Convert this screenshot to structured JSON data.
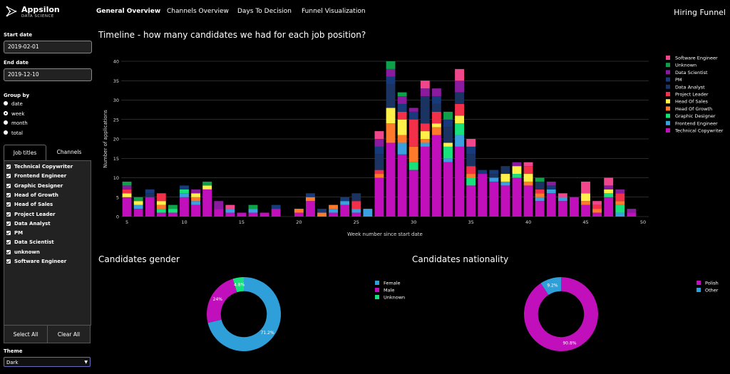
{
  "brand": {
    "name": "Appsilon",
    "sub": "DATA SCIENCE"
  },
  "app_title": "Hiring Funnel",
  "nav": [
    {
      "label": "General Overview",
      "active": true
    },
    {
      "label": "Channels Overview",
      "active": false
    },
    {
      "label": "Days To Decision",
      "active": false
    },
    {
      "label": "Funnel Visualization",
      "active": false
    }
  ],
  "sidebar": {
    "start_label": "Start date",
    "start_value": "2019-02-01",
    "end_label": "End date",
    "end_value": "2019-12-10",
    "group_label": "Group by",
    "group_options": [
      "date",
      "week",
      "month",
      "total"
    ],
    "group_selected": "week",
    "tabs": [
      "Job titles",
      "Channels"
    ],
    "job_titles": [
      "Technical Copywriter",
      "Frontend Engineer",
      "Graphic Designer",
      "Head of Growth",
      "Head of Sales",
      "Project Leader",
      "Data Analyst",
      "PM",
      "Data Scientist",
      "unknown",
      "Software Engineer"
    ],
    "select_all": "Select All",
    "clear_all": "Clear All",
    "theme_label": "Theme",
    "theme_value": "Dark"
  },
  "timeline_title": "Timeline - how many candidates we had for each job position?",
  "gender_title": "Candidates gender",
  "nationality_title": "Candidates nationality",
  "colors": {
    "Software Engineer": "#f0468c",
    "Unknown": "#0fa04a",
    "Data Scientist": "#8a1a9e",
    "PM": "#173a7a",
    "Data Analyst": "#1a3360",
    "Project Leader": "#f2304a",
    "Head Of Sales": "#fff04a",
    "Head Of Growth": "#ff7a2a",
    "Graphic Designer": "#18e07a",
    "Frontend Engineer": "#3aa0e0",
    "Technical Copywriter": "#c20fbc"
  },
  "chart_data": [
    {
      "type": "bar",
      "stacked": true,
      "xlabel": "Week number since start date",
      "ylabel": "Number of applications",
      "xlim": [
        4.5,
        50.5
      ],
      "ylim": [
        0,
        40
      ],
      "xticks": [
        5,
        10,
        15,
        20,
        25,
        30,
        35,
        40,
        45,
        50
      ],
      "yticks": [
        0,
        5,
        10,
        15,
        20,
        25,
        30,
        35,
        40
      ],
      "legend": [
        "Software Engineer",
        "Unknown",
        "Data Scientist",
        "PM",
        "Data Analyst",
        "Project Leader",
        "Head Of Sales",
        "Head Of Growth",
        "Graphic Designer",
        "Frontend Engineer",
        "Technical Copywriter"
      ],
      "stack_order": [
        "Technical Copywriter",
        "Frontend Engineer",
        "Graphic Designer",
        "Head Of Growth",
        "Head Of Sales",
        "Project Leader",
        "Data Analyst",
        "PM",
        "Data Scientist",
        "Unknown",
        "Software Engineer"
      ],
      "weeks": [
        {
          "x": 5,
          "s": {
            "Technical Copywriter": 5,
            "Head Of Sales": 1,
            "Project Leader": 1,
            "Data Scientist": 1,
            "Unknown": 1
          }
        },
        {
          "x": 6,
          "s": {
            "Technical Copywriter": 2,
            "Frontend Engineer": 1,
            "Head Of Sales": 1,
            "Unknown": 1
          }
        },
        {
          "x": 7,
          "s": {
            "Technical Copywriter": 5,
            "Data Analyst": 1,
            "PM": 1
          }
        },
        {
          "x": 8,
          "s": {
            "Technical Copywriter": 1,
            "Graphic Designer": 1,
            "Head Of Sales": 1,
            "Head Of Growth": 1,
            "Project Leader": 2
          }
        },
        {
          "x": 9,
          "s": {
            "Technical Copywriter": 1,
            "Graphic Designer": 1,
            "Unknown": 1
          }
        },
        {
          "x": 10,
          "s": {
            "Technical Copywriter": 5,
            "Frontend Engineer": 1,
            "Graphic Designer": 1,
            "PM": 1
          }
        },
        {
          "x": 11,
          "s": {
            "Technical Copywriter": 3,
            "Frontend Engineer": 1,
            "Head Of Sales": 1,
            "Head Of Growth": 1,
            "Data Scientist": 1
          }
        },
        {
          "x": 12,
          "s": {
            "Technical Copywriter": 7,
            "Head Of Sales": 1,
            "Unknown": 1
          }
        },
        {
          "x": 13,
          "s": {
            "Technical Copywriter": 2,
            "Data Scientist": 2
          }
        },
        {
          "x": 14,
          "s": {
            "Technical Copywriter": 1,
            "Frontend Engineer": 1,
            "Software Engineer": 1
          }
        },
        {
          "x": 15,
          "s": {
            "Technical Copywriter": 1
          }
        },
        {
          "x": 16,
          "s": {
            "Technical Copywriter": 1,
            "Frontend Engineer": 1,
            "Unknown": 1
          }
        },
        {
          "x": 17,
          "s": {
            "Technical Copywriter": 1
          }
        },
        {
          "x": 18,
          "s": {
            "Technical Copywriter": 2,
            "PM": 1
          }
        },
        {
          "x": 20,
          "s": {
            "Technical Copywriter": 1,
            "Head Of Growth": 1
          }
        },
        {
          "x": 21,
          "s": {
            "Technical Copywriter": 4,
            "Head Of Growth": 1,
            "PM": 1
          }
        },
        {
          "x": 22,
          "s": {
            "Head Of Growth": 1,
            "PM": 1
          }
        },
        {
          "x": 23,
          "s": {
            "Technical Copywriter": 1,
            "Frontend Engineer": 1,
            "Head Of Growth": 1
          }
        },
        {
          "x": 24,
          "s": {
            "Technical Copywriter": 3,
            "Frontend Engineer": 1,
            "PM": 1
          }
        },
        {
          "x": 25,
          "s": {
            "Technical Copywriter": 1,
            "Frontend Engineer": 1,
            "Data Analyst": 2,
            "Project Leader": 2
          }
        },
        {
          "x": 26,
          "s": {
            "Frontend Engineer": 2
          }
        },
        {
          "x": 27,
          "s": {
            "Technical Copywriter": 10,
            "Head Of Growth": 1,
            "Project Leader": 1,
            "Data Analyst": 4,
            "PM": 2,
            "Data Scientist": 2,
            "Software Engineer": 2
          }
        },
        {
          "x": 28,
          "s": {
            "Technical Copywriter": 19,
            "Head Of Sales": 4,
            "Head Of Growth": 5,
            "Data Analyst": 6,
            "PM": 2,
            "Data Scientist": 2,
            "Unknown": 2
          }
        },
        {
          "x": 29,
          "s": {
            "Technical Copywriter": 16,
            "Frontend Engineer": 3,
            "Head Of Sales": 4,
            "Head Of Growth": 2,
            "Project Leader": 2,
            "PM": 2,
            "Data Scientist": 2,
            "Unknown": 1
          }
        },
        {
          "x": 30,
          "s": {
            "Technical Copywriter": 12,
            "Graphic Designer": 2,
            "Head Of Growth": 4,
            "Project Leader": 7,
            "PM": 2,
            "Data Scientist": 1
          }
        },
        {
          "x": 31,
          "s": {
            "Technical Copywriter": 18,
            "Frontend Engineer": 1,
            "Head Of Growth": 1,
            "Head Of Sales": 2,
            "Project Leader": 2,
            "Data Analyst": 7,
            "Data Scientist": 2,
            "Software Engineer": 2
          }
        },
        {
          "x": 32,
          "s": {
            "Technical Copywriter": 21,
            "Head Of Sales": 1,
            "Head Of Growth": 2,
            "Project Leader": 3,
            "Data Analyst": 2,
            "PM": 2,
            "Data Scientist": 2
          }
        },
        {
          "x": 33,
          "s": {
            "Technical Copywriter": 14,
            "Graphic Designer": 3,
            "Frontend Engineer": 1,
            "Head Of Sales": 1,
            "Data Analyst": 4,
            "PM": 2,
            "Unknown": 2
          }
        },
        {
          "x": 34,
          "s": {
            "Technical Copywriter": 18,
            "Frontend Engineer": 3,
            "Graphic Designer": 3,
            "Head Of Sales": 2,
            "Project Leader": 3,
            "Data Analyst": 3,
            "Data Scientist": 3,
            "Software Engineer": 3
          }
        },
        {
          "x": 35,
          "s": {
            "Technical Copywriter": 8,
            "Graphic Designer": 2,
            "Head Of Growth": 1,
            "Data Analyst": 3,
            "PM": 2,
            "Project Leader": 2,
            "Software Engineer": 2
          }
        },
        {
          "x": 36,
          "s": {
            "Technical Copywriter": 11,
            "PM": 1
          }
        },
        {
          "x": 37,
          "s": {
            "Technical Copywriter": 9,
            "Frontend Engineer": 1,
            "Data Analyst": 1,
            "PM": 1
          }
        },
        {
          "x": 38,
          "s": {
            "Technical Copywriter": 8,
            "Frontend Engineer": 1,
            "Head Of Sales": 2,
            "Data Analyst": 2
          }
        },
        {
          "x": 39,
          "s": {
            "Technical Copywriter": 10,
            "Graphic Designer": 1,
            "Head Of Sales": 2,
            "Data Scientist": 1
          }
        },
        {
          "x": 40,
          "s": {
            "Technical Copywriter": 8,
            "Head Of Sales": 2,
            "Head Of Growth": 1,
            "Project Leader": 2,
            "Software Engineer": 1
          }
        },
        {
          "x": 41,
          "s": {
            "Technical Copywriter": 4,
            "Frontend Engineer": 1,
            "Head Of Growth": 1,
            "Project Leader": 1,
            "Data Analyst": 2,
            "Unknown": 1
          }
        },
        {
          "x": 42,
          "s": {
            "Technical Copywriter": 6,
            "Frontend Engineer": 1,
            "PM": 1,
            "Data Scientist": 1
          }
        },
        {
          "x": 43,
          "s": {
            "Technical Copywriter": 4,
            "Frontend Engineer": 1,
            "Software Engineer": 1
          }
        },
        {
          "x": 44,
          "s": {
            "Technical Copywriter": 5
          }
        },
        {
          "x": 45,
          "s": {
            "Technical Copywriter": 3,
            "Head Of Growth": 1,
            "Head Of Sales": 2,
            "Software Engineer": 3
          }
        },
        {
          "x": 46,
          "s": {
            "Technical Copywriter": 1,
            "Head Of Growth": 1,
            "Project Leader": 1,
            "Software Engineer": 1
          }
        },
        {
          "x": 47,
          "s": {
            "Technical Copywriter": 5,
            "Graphic Designer": 1,
            "Head Of Sales": 1,
            "Data Scientist": 1,
            "Software Engineer": 2
          }
        },
        {
          "x": 48,
          "s": {
            "Frontend Engineer": 1,
            "Graphic Designer": 2,
            "Head Of Growth": 1,
            "Project Leader": 2,
            "Data Scientist": 1
          }
        },
        {
          "x": 49,
          "s": {
            "Technical Copywriter": 1,
            "Data Scientist": 1
          }
        }
      ]
    },
    {
      "type": "pie",
      "hole": 0.62,
      "labels": [
        "Female",
        "Male",
        "Unknown"
      ],
      "values": [
        71.2,
        24,
        4.8
      ],
      "text": [
        "71.2%",
        "24%",
        "4.8%"
      ],
      "colors": [
        "#2e9fd8",
        "#c20fbc",
        "#18e07a"
      ]
    },
    {
      "type": "pie",
      "hole": 0.62,
      "labels": [
        "Polish",
        "Other"
      ],
      "values": [
        90.8,
        9.2
      ],
      "text": [
        "90.8%",
        "9.2%"
      ],
      "colors": [
        "#c20fbc",
        "#2e9fd8"
      ]
    }
  ]
}
